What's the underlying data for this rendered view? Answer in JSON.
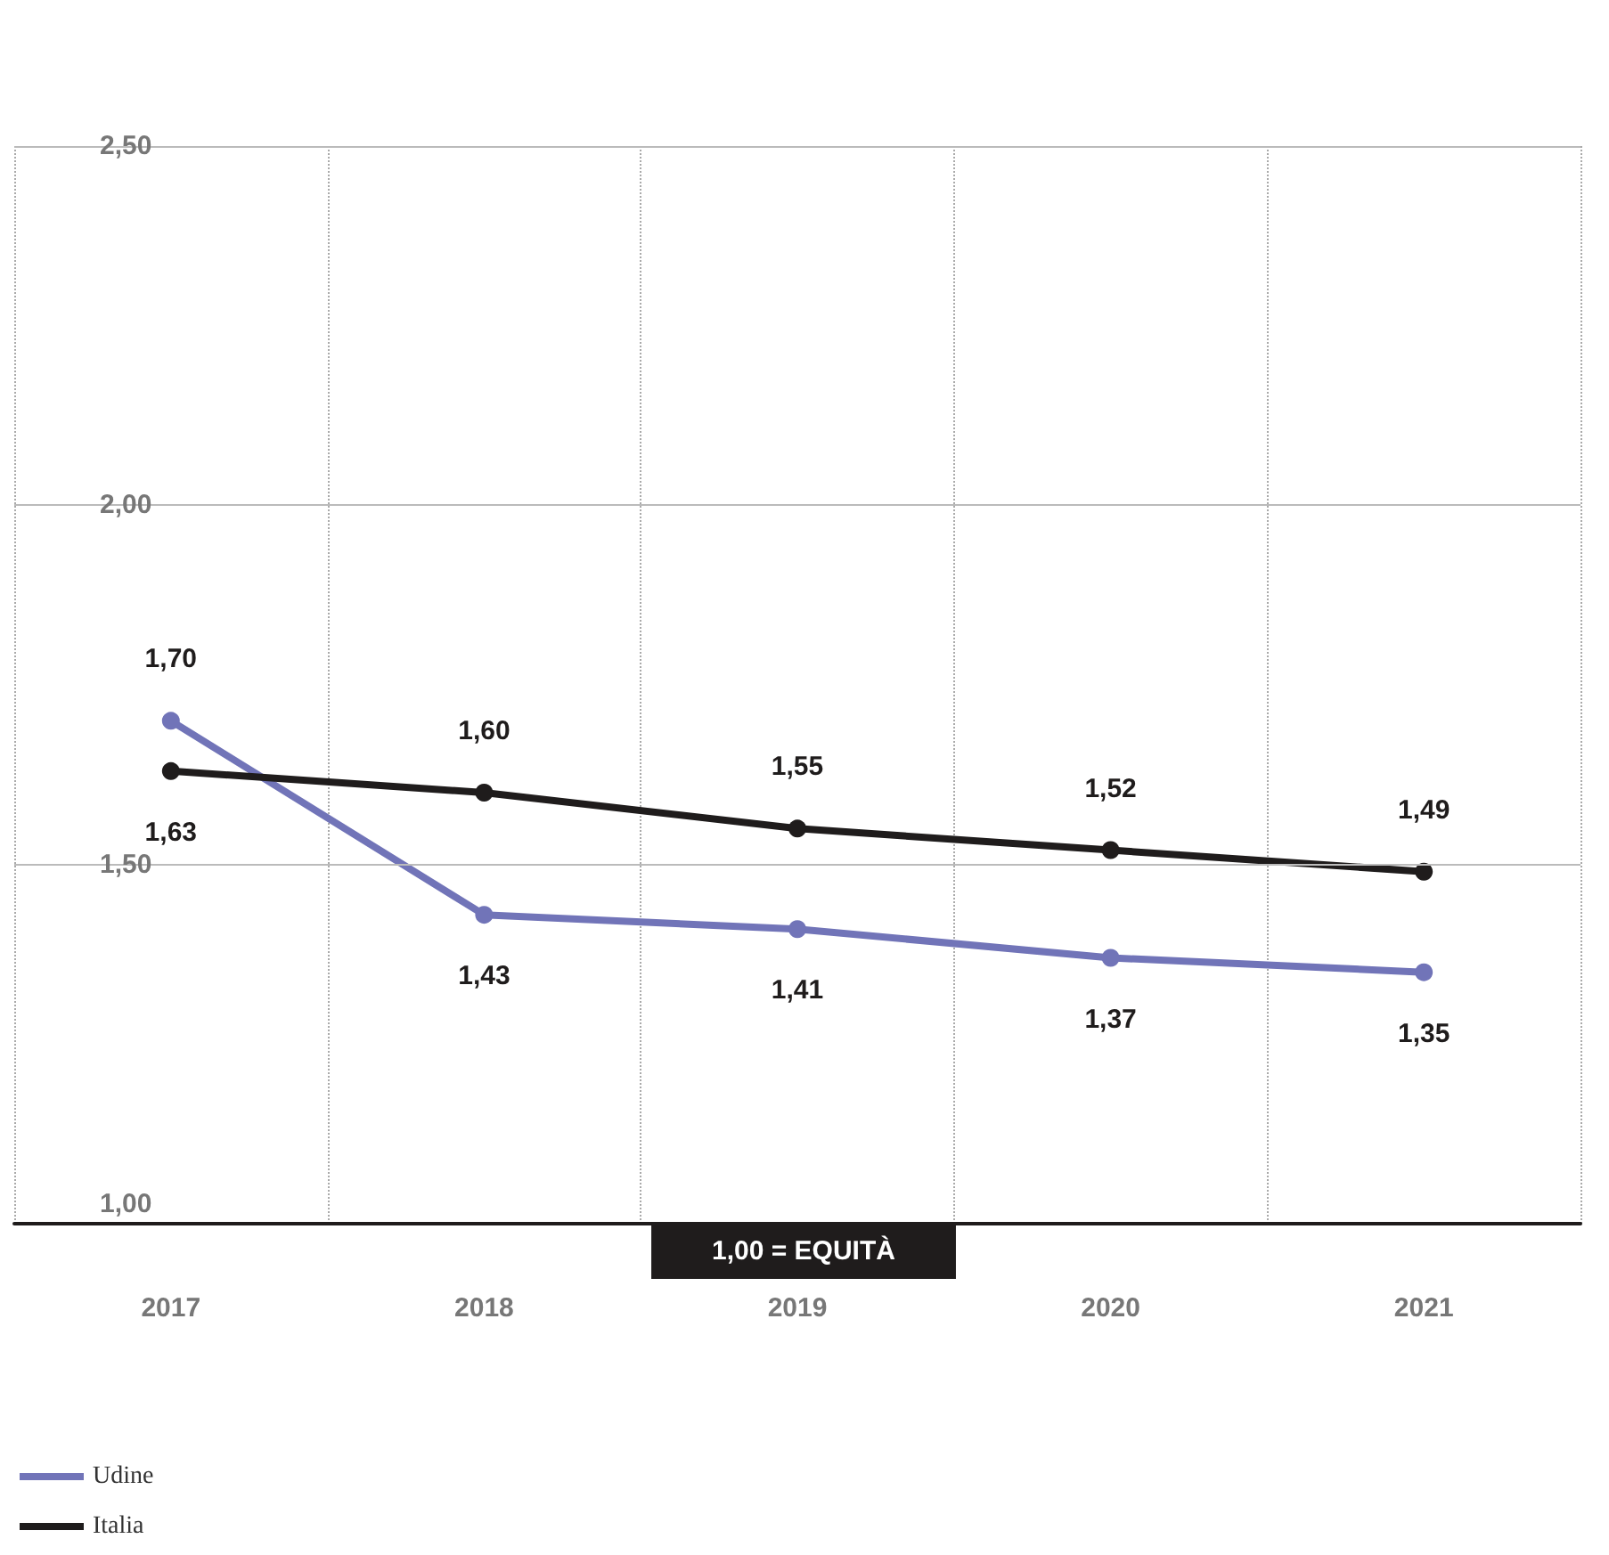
{
  "chart_data": {
    "type": "line",
    "categories": [
      "2017",
      "2018",
      "2019",
      "2020",
      "2021"
    ],
    "series": [
      {
        "name": "Udine",
        "color": "#7174b8",
        "values": [
          1.7,
          1.43,
          1.41,
          1.37,
          1.35
        ],
        "value_labels": [
          "1,70",
          "1,43",
          "1,41",
          "1,37",
          "1,35"
        ]
      },
      {
        "name": "Italia",
        "color": "#1f1c1c",
        "values": [
          1.63,
          1.6,
          1.55,
          1.52,
          1.49
        ],
        "value_labels": [
          "1,63",
          "1,60",
          "1,55",
          "1,52",
          "1,49"
        ]
      }
    ],
    "ylim": [
      1,
      2.5
    ],
    "yticks": [
      {
        "value": 1,
        "label": "1,00"
      },
      {
        "value": 1.5,
        "label": "1,50"
      },
      {
        "value": 2,
        "label": "2,00"
      },
      {
        "value": 2.5,
        "label": "2,50"
      }
    ],
    "annotations": [
      "1,00 = EQUITÀ"
    ],
    "grid": true,
    "legend": "bottom left",
    "marker": "circle",
    "line_style": "solid"
  }
}
